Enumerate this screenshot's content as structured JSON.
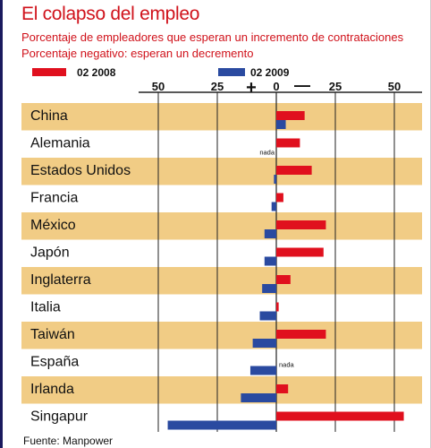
{
  "title": "El colapso del empleo",
  "subtitle_1": "Porcentaje de empleadores que esperan un incremento de contrataciones",
  "subtitle_2": "Porcentaje negativo: esperan un decremento",
  "source": "Fuente: Manpower",
  "colors": {
    "red": "#e0101e",
    "blue": "#2a4aa0",
    "band": "#f1cc85",
    "text": "#111111"
  },
  "chart_data": {
    "type": "bar",
    "orientation": "horizontal",
    "axis": {
      "ticks": [
        50,
        25,
        0,
        25,
        50
      ],
      "tick_values": [
        -50,
        -25,
        0,
        25,
        50
      ],
      "sign_left": "+",
      "sign_right": "—",
      "xlim": [
        -50,
        62
      ]
    },
    "categories": [
      "China",
      "Alemania",
      "Estados Unidos",
      "Francia",
      "México",
      "Japón",
      "Inglaterra",
      "Italia",
      "Taiwán",
      "España",
      "Irlanda",
      "Singapur"
    ],
    "series": [
      {
        "name": "02 2008",
        "color": "#e0101e",
        "values": [
          12,
          10,
          15,
          3,
          21,
          20,
          6,
          1,
          21,
          0,
          5,
          54
        ]
      },
      {
        "name": "02 2009",
        "color": "#2a4aa0",
        "values": [
          4,
          0,
          -1,
          -2,
          -5,
          -5,
          -6,
          -7,
          -10,
          -11,
          -15,
          -46
        ]
      }
    ],
    "annotations": [
      {
        "category": "Alemania",
        "series": "02 2009",
        "text": "nada"
      },
      {
        "category": "España",
        "series": "02 2008",
        "text": "nada"
      }
    ]
  }
}
